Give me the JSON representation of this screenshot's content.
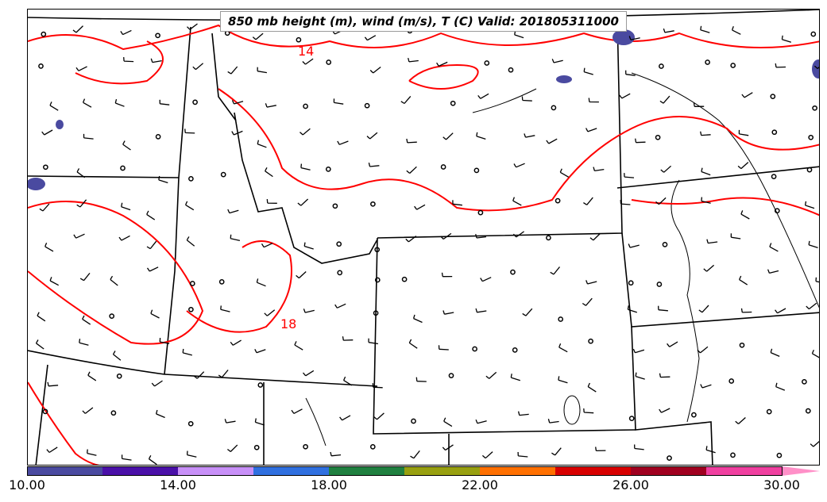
{
  "map": {
    "title": "850 mb height (m), wind (m/s), T (C) Valid: 201805311000",
    "contour_labels": [
      "14",
      "18"
    ],
    "contour_color": "#ff0000",
    "colorbar": {
      "ticks": [
        "10.00",
        "14.00",
        "18.00",
        "22.00",
        "26.00",
        "30.00"
      ],
      "colors": [
        "#4a4aa0",
        "#4a10a8",
        "#c890f8",
        "#3070e0",
        "#208040",
        "#98a010",
        "#ff7000",
        "#d80000",
        "#a00020",
        "#f040a0",
        "#ff90c8"
      ]
    }
  }
}
